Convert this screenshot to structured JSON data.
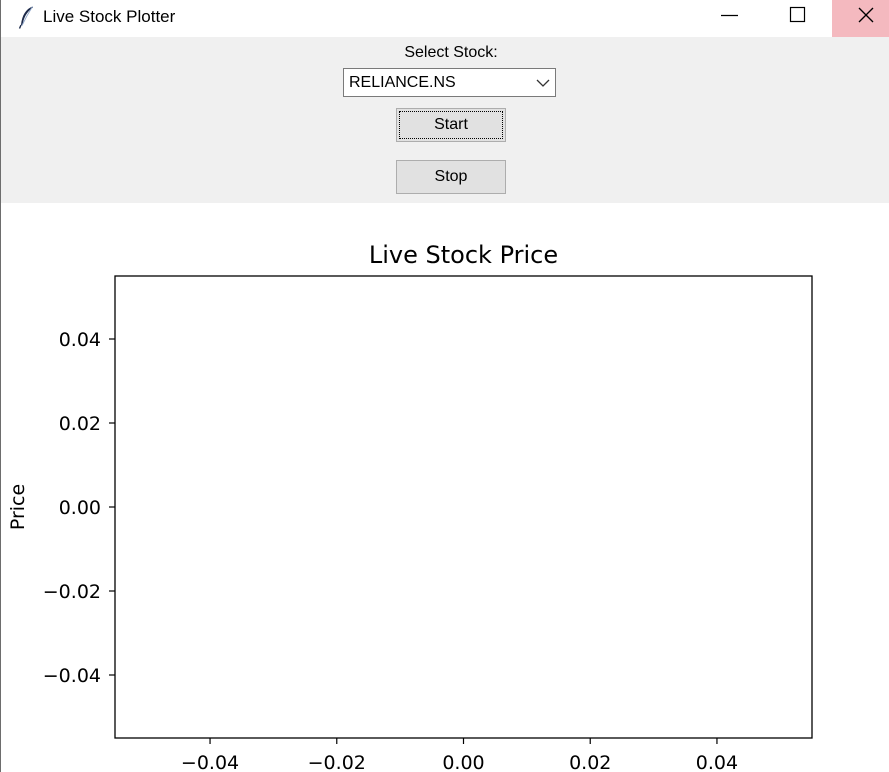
{
  "window": {
    "title": "Live Stock Plotter",
    "icon": "feather-icon"
  },
  "controls": {
    "select_label": "Select Stock:",
    "selected_stock": "RELIANCE.NS",
    "start_label": "Start",
    "stop_label": "Stop"
  },
  "chart_data": {
    "type": "line",
    "title": "Live Stock Price",
    "xlabel": "",
    "ylabel": "Price",
    "xlim": [
      -0.055,
      0.055
    ],
    "ylim": [
      -0.055,
      0.055
    ],
    "x_ticks": [
      -0.04,
      -0.02,
      0.0,
      0.02,
      0.04
    ],
    "y_ticks": [
      0.04,
      0.02,
      0.0,
      -0.02,
      -0.04
    ],
    "x_tick_labels": [
      "−0.04",
      "−0.02",
      "0.00",
      "0.02",
      "0.04"
    ],
    "y_tick_labels": [
      "0.04",
      "0.02",
      "0.00",
      "−0.02",
      "−0.04"
    ],
    "series": [
      {
        "x": [],
        "y": []
      }
    ],
    "grid": false
  },
  "colors": {
    "close_hover": "#f4b9bf",
    "panel_bg": "#f0f0f0",
    "button_bg": "#e1e1e1"
  }
}
